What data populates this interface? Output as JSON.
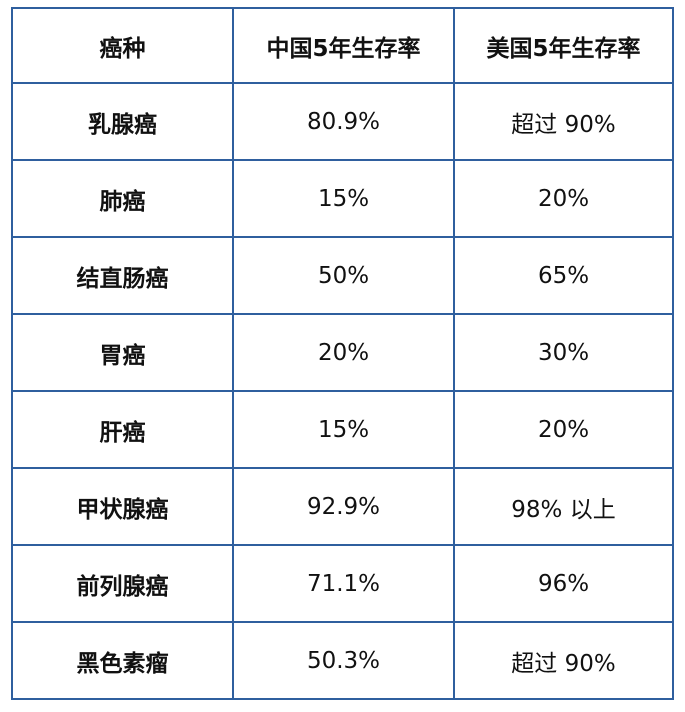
{
  "table": {
    "headers": [
      "癌种",
      "中国5年生存率",
      "美国5年生存率"
    ],
    "rows": [
      [
        "乳腺癌",
        "80.9%",
        "超过 90%"
      ],
      [
        "肺癌",
        "15%",
        "20%"
      ],
      [
        "结直肠癌",
        "50%",
        "65%"
      ],
      [
        "胃癌",
        "20%",
        "30%"
      ],
      [
        "肝癌",
        "15%",
        "20%"
      ],
      [
        "甲状腺癌",
        "92.9%",
        "98% 以上"
      ],
      [
        "前列腺癌",
        "71.1%",
        "96%"
      ],
      [
        "黑色素瘤",
        "50.3%",
        "超过 90%"
      ]
    ],
    "border_color": "#2f5f9e"
  }
}
